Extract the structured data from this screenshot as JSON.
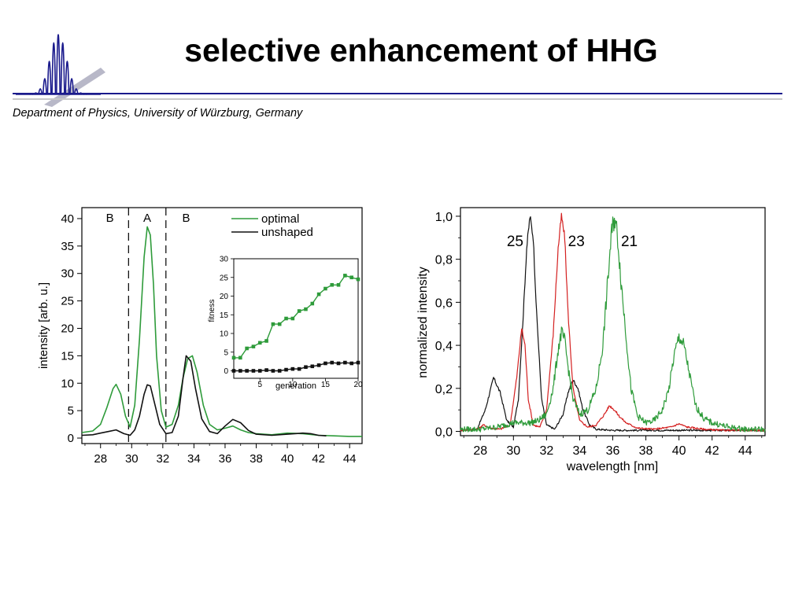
{
  "header": {
    "title": "selective enhancement of HHG",
    "department": "Department of Physics, University of Würzburg, Germany",
    "logo_icon": "hhg-pulse-logo-icon",
    "accent_color": "#1a1a8c"
  },
  "chart_data": [
    {
      "type": "line",
      "ylabel": "intensity [arb. u.]",
      "xlabel": "",
      "xlim": [
        26.8,
        44.8
      ],
      "ylim": [
        -1,
        42
      ],
      "x_ticks": [
        "28",
        "30",
        "32",
        "34",
        "36",
        "38",
        "40",
        "42",
        "44"
      ],
      "y_ticks": [
        "0",
        "5",
        "10",
        "15",
        "20",
        "25",
        "30",
        "35",
        "40"
      ],
      "grid": false,
      "legend_position": "top-right",
      "regions": [
        {
          "label": "B",
          "x": 28.6
        },
        {
          "label": "A",
          "x": 31.0
        },
        {
          "label": "B",
          "x": 33.5
        }
      ],
      "divider_lines_x": [
        29.8,
        32.2
      ],
      "series": [
        {
          "name": "optimal",
          "color": "#2e9b3a",
          "x": [
            26.8,
            27.5,
            28.0,
            28.4,
            28.8,
            29.0,
            29.3,
            29.6,
            29.9,
            30.2,
            30.5,
            30.8,
            31.0,
            31.2,
            31.4,
            31.6,
            31.9,
            32.2,
            32.6,
            33.0,
            33.3,
            33.6,
            33.9,
            34.2,
            34.6,
            35.0,
            35.5,
            36.0,
            36.5,
            37.0,
            37.5,
            38.0,
            39.0,
            40.0,
            41.0,
            42.0,
            43.0,
            44.0,
            44.8
          ],
          "y": [
            1.0,
            1.3,
            2.5,
            5.5,
            9.0,
            9.8,
            8.0,
            4.0,
            2.0,
            6.0,
            18.0,
            33.0,
            38.5,
            37.0,
            28.0,
            15.0,
            5.0,
            2.0,
            2.5,
            6.0,
            11.0,
            14.5,
            15.0,
            12.0,
            6.0,
            2.5,
            1.5,
            1.8,
            2.2,
            1.5,
            1.0,
            0.8,
            0.6,
            0.9,
            0.8,
            0.5,
            0.4,
            0.3,
            0.3
          ]
        },
        {
          "name": "unshaped",
          "color": "#111111",
          "x": [
            26.8,
            27.5,
            28.0,
            28.5,
            29.0,
            29.5,
            29.9,
            30.2,
            30.5,
            30.8,
            31.0,
            31.2,
            31.5,
            31.8,
            32.2,
            32.6,
            33.0,
            33.3,
            33.5,
            33.8,
            34.1,
            34.5,
            35.0,
            35.5,
            36.0,
            36.5,
            37.0,
            37.5,
            38.0,
            39.0,
            40.0,
            41.0,
            41.5,
            42.0,
            42.5
          ],
          "y": [
            0.5,
            0.6,
            0.9,
            1.2,
            1.5,
            0.8,
            0.5,
            1.5,
            4.0,
            8.0,
            9.7,
            9.5,
            6.0,
            2.5,
            0.8,
            1.0,
            4.0,
            11.0,
            15.0,
            14.0,
            9.0,
            3.5,
            1.2,
            0.8,
            2.2,
            3.4,
            2.8,
            1.4,
            0.7,
            0.5,
            0.7,
            0.9,
            0.8,
            0.5,
            0.4
          ]
        }
      ],
      "inset": {
        "type": "line",
        "xlabel": "generation",
        "ylabel": "fitness",
        "xlim": [
          1,
          20
        ],
        "ylim": [
          -2,
          30
        ],
        "x_ticks": [
          "5",
          "10",
          "15",
          "20"
        ],
        "y_ticks": [
          "0",
          "5",
          "10",
          "15",
          "20",
          "25",
          "30"
        ],
        "series": [
          {
            "name": "optimal",
            "color": "#2e9b3a",
            "marker": "square",
            "x": [
              1,
              2,
              3,
              4,
              5,
              6,
              7,
              8,
              9,
              10,
              11,
              12,
              13,
              14,
              15,
              16,
              17,
              18,
              19,
              20
            ],
            "y": [
              3.5,
              3.5,
              6,
              6.5,
              7.5,
              8,
              12.5,
              12.5,
              14,
              14,
              16,
              16.5,
              18,
              20.5,
              22,
              23,
              23,
              25.5,
              25,
              24.5
            ]
          },
          {
            "name": "unshaped",
            "color": "#111111",
            "marker": "square",
            "x": [
              1,
              2,
              3,
              4,
              5,
              6,
              7,
              8,
              9,
              10,
              11,
              12,
              13,
              14,
              15,
              16,
              17,
              18,
              19,
              20
            ],
            "y": [
              0,
              0,
              0,
              0,
              0,
              0.2,
              0,
              0,
              0.3,
              0.5,
              0.5,
              1,
              1.2,
              1.5,
              2,
              2.2,
              2,
              2.2,
              2,
              2.2
            ]
          }
        ]
      }
    },
    {
      "type": "line",
      "xlabel": "wavelength [nm]",
      "ylabel": "normalized intensity",
      "xlim": [
        26.8,
        45.2
      ],
      "ylim": [
        -0.02,
        1.04
      ],
      "x_ticks": [
        "28",
        "30",
        "32",
        "34",
        "36",
        "38",
        "40",
        "42",
        "44"
      ],
      "y_ticks": [
        "0,0",
        "0,2",
        "0,4",
        "0,6",
        "0,8",
        "1,0"
      ],
      "grid": false,
      "annotations": [
        {
          "text": "25",
          "x": 30.1,
          "y": 0.86
        },
        {
          "text": "23",
          "x": 33.8,
          "y": 0.86
        },
        {
          "text": "21",
          "x": 37.0,
          "y": 0.86
        }
      ],
      "series": [
        {
          "color": "#111111",
          "x": [
            26.8,
            27.8,
            28.3,
            28.8,
            29.2,
            29.6,
            30.0,
            30.3,
            30.6,
            30.8,
            31.0,
            31.2,
            31.4,
            31.7,
            32.0,
            32.5,
            33.0,
            33.3,
            33.6,
            33.9,
            34.2,
            34.6,
            35.0,
            36.0,
            38.0,
            40.0,
            42.0,
            45.2
          ],
          "y": [
            0.005,
            0.01,
            0.1,
            0.25,
            0.18,
            0.05,
            0.02,
            0.15,
            0.55,
            0.85,
            1.0,
            0.9,
            0.55,
            0.15,
            0.03,
            0.01,
            0.08,
            0.18,
            0.24,
            0.2,
            0.1,
            0.03,
            0.01,
            0.005,
            0.005,
            0.005,
            0.005,
            0.005
          ]
        },
        {
          "color": "#d42020",
          "x": [
            26.8,
            27.8,
            28.2,
            28.6,
            29.2,
            29.8,
            30.2,
            30.5,
            30.7,
            30.9,
            31.2,
            31.6,
            32.0,
            32.4,
            32.7,
            32.9,
            33.1,
            33.3,
            33.6,
            34.0,
            34.5,
            35.0,
            35.5,
            35.8,
            36.1,
            36.4,
            36.8,
            37.5,
            38.5,
            39.5,
            40.0,
            40.5,
            41.5,
            42.5,
            45.2
          ],
          "y": [
            0.005,
            0.01,
            0.03,
            0.015,
            0.01,
            0.03,
            0.25,
            0.48,
            0.4,
            0.15,
            0.03,
            0.02,
            0.1,
            0.45,
            0.85,
            1.0,
            0.9,
            0.55,
            0.2,
            0.05,
            0.02,
            0.03,
            0.08,
            0.12,
            0.1,
            0.07,
            0.04,
            0.015,
            0.01,
            0.02,
            0.035,
            0.02,
            0.01,
            0.005,
            0.005
          ]
        },
        {
          "color": "#2e9b3a",
          "x": [
            26.8,
            28.0,
            29.0,
            30.0,
            31.0,
            31.5,
            32.0,
            32.4,
            32.7,
            32.9,
            33.1,
            33.3,
            33.6,
            34.0,
            34.5,
            35.0,
            35.4,
            35.7,
            35.9,
            36.1,
            36.3,
            36.5,
            36.8,
            37.1,
            37.5,
            38.0,
            38.5,
            39.0,
            39.4,
            39.7,
            40.0,
            40.3,
            40.6,
            41.0,
            41.5,
            42.0,
            43.0,
            44.0,
            45.2
          ],
          "y": [
            0.01,
            0.01,
            0.02,
            0.04,
            0.04,
            0.05,
            0.08,
            0.2,
            0.38,
            0.46,
            0.42,
            0.3,
            0.15,
            0.08,
            0.1,
            0.2,
            0.4,
            0.7,
            0.9,
            1.0,
            0.9,
            0.7,
            0.45,
            0.2,
            0.07,
            0.04,
            0.05,
            0.1,
            0.2,
            0.35,
            0.44,
            0.4,
            0.28,
            0.12,
            0.06,
            0.04,
            0.02,
            0.01,
            0.01
          ]
        }
      ]
    }
  ]
}
